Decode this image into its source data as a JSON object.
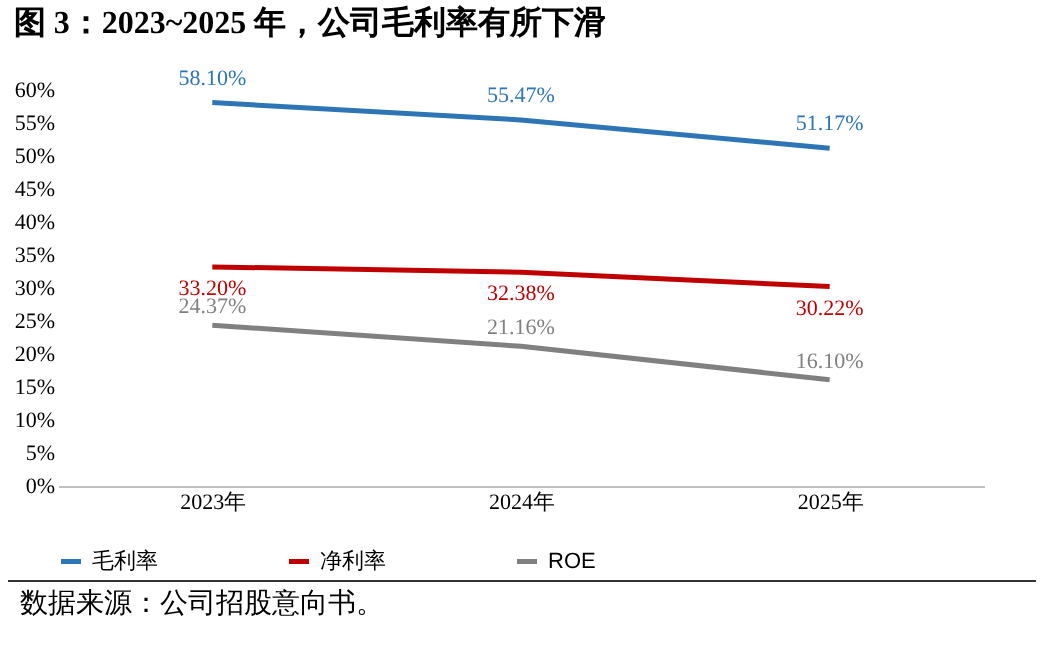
{
  "chart_data": {
    "type": "line",
    "title": "图 3：2023~2025 年，公司毛利率有所下滑",
    "categories": [
      "2023年",
      "2024年",
      "2025年"
    ],
    "series": [
      {
        "name": "毛利率",
        "color": "#2e75b6",
        "values": [
          58.1,
          55.47,
          51.17
        ],
        "value_labels": [
          "58.10%",
          "55.47%",
          "51.17%"
        ]
      },
      {
        "name": "净利率",
        "color": "#c00000",
        "values": [
          33.2,
          32.38,
          30.22
        ],
        "value_labels": [
          "33.20%",
          "32.38%",
          "30.22%"
        ]
      },
      {
        "name": "ROE",
        "color": "#808080",
        "values": [
          24.37,
          21.16,
          16.1
        ],
        "value_labels": [
          "24.37%",
          "21.16%",
          "16.10%"
        ]
      }
    ],
    "ylim": [
      0,
      60
    ],
    "yticks": [
      {
        "value": 0,
        "label": "0%"
      },
      {
        "value": 5,
        "label": "5%"
      },
      {
        "value": 10,
        "label": "10%"
      },
      {
        "value": 15,
        "label": "15%"
      },
      {
        "value": 20,
        "label": "20%"
      },
      {
        "value": 25,
        "label": "25%"
      },
      {
        "value": 30,
        "label": "30%"
      },
      {
        "value": 35,
        "label": "35%"
      },
      {
        "value": 40,
        "label": "40%"
      },
      {
        "value": 45,
        "label": "45%"
      },
      {
        "value": 50,
        "label": "50%"
      },
      {
        "value": 55,
        "label": "55%"
      },
      {
        "value": 60,
        "label": "60%"
      }
    ],
    "grid": false,
    "legend": "bottom",
    "marker": "none",
    "line_style": "solid",
    "annotations": [
      "数据来源：公司招股意向书。"
    ]
  }
}
